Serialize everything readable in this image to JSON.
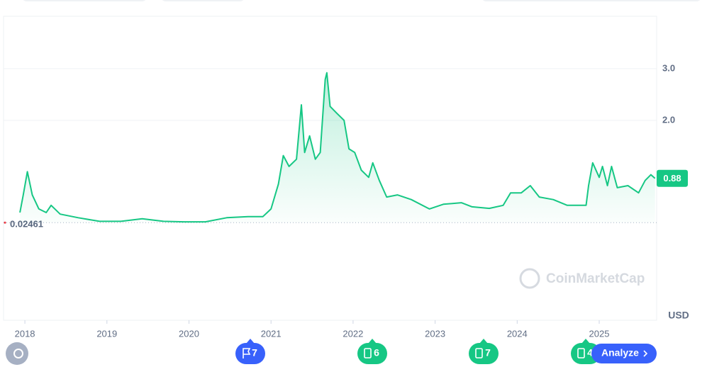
{
  "chart_data": {
    "type": "line",
    "x": [
      2017.94,
      2017.98,
      2018.03,
      2018.09,
      2018.17,
      2018.26,
      2018.32,
      2018.43,
      2018.65,
      2018.91,
      2019.17,
      2019.43,
      2019.69,
      2019.94,
      2020.2,
      2020.46,
      2020.72,
      2020.9,
      2021.0,
      2021.09,
      2021.15,
      2021.22,
      2021.31,
      2021.37,
      2021.41,
      2021.47,
      2021.54,
      2021.6,
      2021.66,
      2021.68,
      2021.72,
      2021.8,
      2021.89,
      2021.95,
      2022.02,
      2022.1,
      2022.19,
      2022.24,
      2022.32,
      2022.41,
      2022.54,
      2022.71,
      2022.93,
      2023.1,
      2023.32,
      2023.45,
      2023.66,
      2023.83,
      2023.92,
      2024.05,
      2024.16,
      2024.27,
      2024.44,
      2024.61,
      2024.84,
      2024.87,
      2024.92,
      2025.0,
      2025.04,
      2025.1,
      2025.15,
      2025.22,
      2025.35,
      2025.48,
      2025.56,
      2025.63,
      2025.68
    ],
    "values": [
      0.22,
      0.56,
      1.01,
      0.56,
      0.29,
      0.22,
      0.36,
      0.19,
      0.12,
      0.05,
      0.05,
      0.1,
      0.05,
      0.04,
      0.04,
      0.12,
      0.14,
      0.14,
      0.29,
      0.77,
      1.32,
      1.11,
      1.25,
      2.3,
      1.38,
      1.7,
      1.25,
      1.38,
      2.79,
      2.92,
      2.27,
      2.14,
      2.0,
      1.45,
      1.38,
      1.04,
      0.9,
      1.18,
      0.84,
      0.52,
      0.56,
      0.47,
      0.29,
      0.38,
      0.41,
      0.33,
      0.3,
      0.36,
      0.6,
      0.6,
      0.74,
      0.52,
      0.47,
      0.36,
      0.36,
      0.74,
      1.18,
      0.9,
      1.11,
      0.74,
      1.11,
      0.7,
      0.74,
      0.6,
      0.84,
      0.95,
      0.88
    ],
    "color": "#16c784",
    "xlim": [
      2017.74,
      2025.7
    ],
    "xticks": [
      2018,
      2019,
      2020,
      2021,
      2022,
      2023,
      2024,
      2025
    ],
    "ylim": [
      -1.86,
      4.01
    ],
    "yticks": [
      {
        "value": 2,
        "label": "2.0"
      },
      {
        "value": 3,
        "label": "3.0"
      }
    ],
    "grid": true,
    "reference_value": 0.02461,
    "last_price": 0.88,
    "currency": "USD",
    "watermark": "CoinMarketCap",
    "events": [
      {
        "count": 7
      },
      {
        "count": 6
      },
      {
        "count": 7
      },
      {
        "count": 4
      }
    ],
    "button": "Analyze"
  }
}
